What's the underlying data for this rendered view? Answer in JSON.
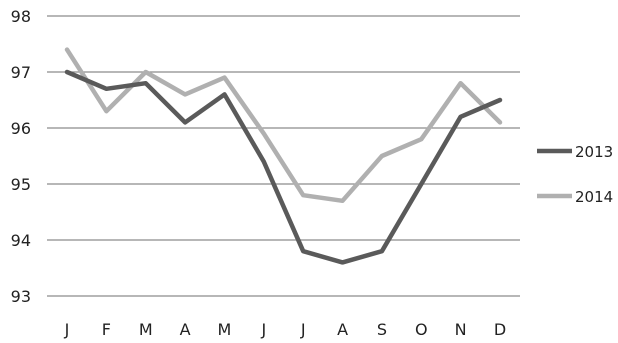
{
  "chart_data": {
    "type": "line",
    "title": "",
    "xlabel": "",
    "ylabel": "",
    "categories": [
      "J",
      "F",
      "M",
      "A",
      "M",
      "J",
      "J",
      "A",
      "S",
      "O",
      "N",
      "D"
    ],
    "ylim": [
      93,
      98
    ],
    "yticks": [
      "93",
      "94",
      "95",
      "96",
      "97",
      "98"
    ],
    "grid": "horizontal",
    "legend": "right",
    "series": [
      {
        "name": "2013",
        "color": "#5a5a5a",
        "values": [
          97.0,
          96.7,
          96.8,
          96.1,
          96.6,
          95.4,
          93.8,
          93.6,
          93.8,
          95.0,
          96.2,
          96.5
        ]
      },
      {
        "name": "2014",
        "color": "#b0b0b0",
        "values": [
          97.4,
          96.3,
          97.0,
          96.6,
          96.9,
          95.9,
          94.8,
          94.7,
          95.5,
          95.8,
          96.8,
          96.1
        ]
      }
    ]
  }
}
